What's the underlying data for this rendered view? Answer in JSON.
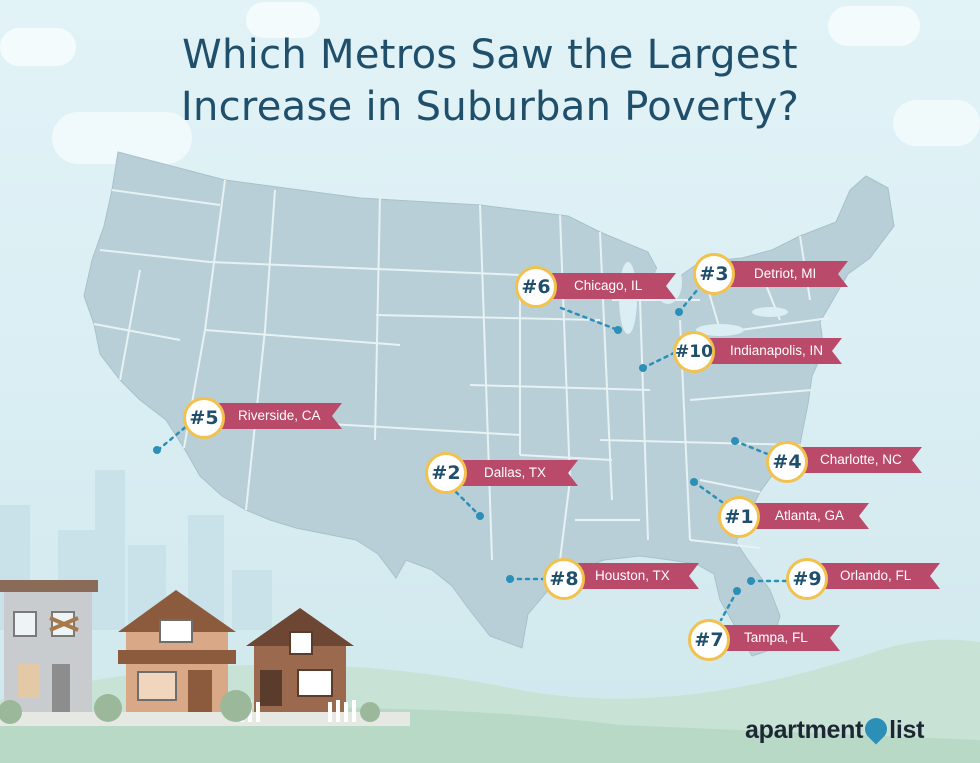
{
  "title": {
    "line1": "Which Metros Saw the Largest",
    "line2": "Increase in Suburban Poverty?"
  },
  "colors": {
    "map_fill": "#b8cfd8",
    "state_border": "#e8f1f4",
    "ribbon": "#b94a6a",
    "badge_border": "#f2c14e",
    "title": "#1f4f6b",
    "dot": "#2b8fb7"
  },
  "markers": [
    {
      "rank": "#1",
      "city": "Atlanta, GA",
      "icon": "location-dot"
    },
    {
      "rank": "#2",
      "city": "Dallas, TX",
      "icon": "location-dot"
    },
    {
      "rank": "#3",
      "city": "Detriot, MI",
      "icon": "location-dot"
    },
    {
      "rank": "#4",
      "city": "Charlotte, NC",
      "icon": "location-dot"
    },
    {
      "rank": "#5",
      "city": "Riverside, CA",
      "icon": "location-dot"
    },
    {
      "rank": "#6",
      "city": "Chicago, IL",
      "icon": "location-dot"
    },
    {
      "rank": "#7",
      "city": "Tampa, FL",
      "icon": "location-dot"
    },
    {
      "rank": "#8",
      "city": "Houston, TX",
      "icon": "location-dot"
    },
    {
      "rank": "#9",
      "city": "Orlando, FL",
      "icon": "location-dot"
    },
    {
      "rank": "#10",
      "city": "Indianapolis, IN",
      "icon": "location-dot"
    }
  ],
  "brand": {
    "name_left": "apartment",
    "name_right": "list",
    "icon": "location-pin-icon"
  }
}
